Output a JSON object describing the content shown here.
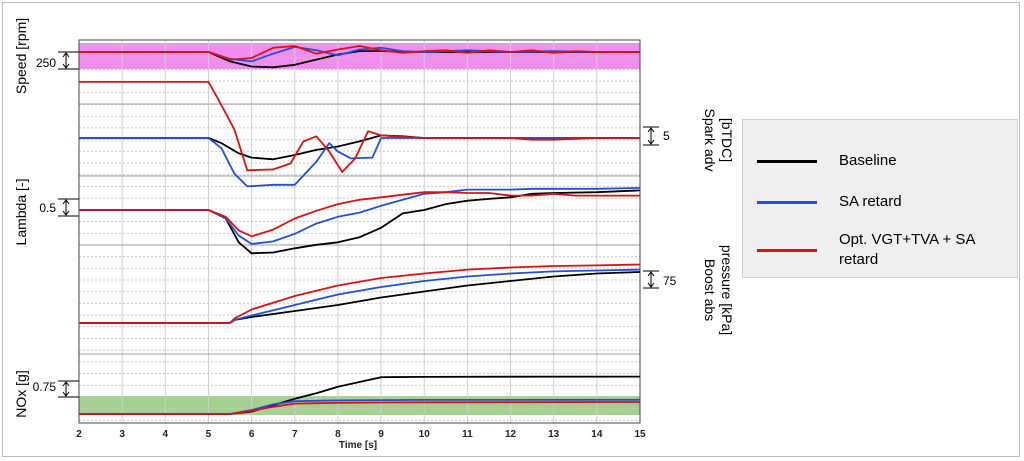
{
  "colors": {
    "baseline": "#000000",
    "sa_retard": "#1f4fe0",
    "opt": "#e01010",
    "speed_band": "#ee82ee",
    "nox_band": "#9fcf8a"
  },
  "legend": {
    "items": [
      {
        "label": "Baseline",
        "color": "#000000"
      },
      {
        "label": "SA retard",
        "color": "#1f4fe0"
      },
      {
        "label": "Opt. VGT+TVA + SA retard",
        "color": "#e01010"
      }
    ]
  },
  "chart_data": {
    "type": "line",
    "xlabel": "Time [s]",
    "xlim": [
      2,
      15
    ],
    "x_ticks": [
      "2",
      "3",
      "4",
      "5",
      "6",
      "7",
      "8",
      "9",
      "10",
      "11",
      "12",
      "13",
      "14",
      "15"
    ],
    "panels": [
      {
        "name": "speed",
        "label": "Speed [rpm]",
        "label_side": "left",
        "scale_label": "250",
        "series": [
          {
            "name": "Baseline",
            "x": [
              2,
              5,
              5.5,
              6,
              6.5,
              7,
              7.5,
              8,
              8.5,
              9,
              10,
              11,
              12,
              13,
              14,
              15
            ],
            "y": [
              0,
              0,
              -0.55,
              -0.85,
              -0.9,
              -0.75,
              -0.45,
              -0.15,
              0.05,
              0.05,
              0,
              0,
              0,
              0,
              0,
              0
            ]
          },
          {
            "name": "SA retard",
            "x": [
              2,
              5,
              5.5,
              6,
              6.5,
              7,
              7.5,
              8,
              8.5,
              9,
              9.5,
              10,
              11,
              12,
              13,
              14,
              15
            ],
            "y": [
              0,
              0,
              -0.4,
              -0.55,
              -0.1,
              0.3,
              0.1,
              -0.2,
              0.15,
              0.25,
              0.05,
              0,
              0.1,
              0,
              0.05,
              0,
              0
            ]
          },
          {
            "name": "Opt. VGT+TVA + SA retard",
            "x": [
              2,
              5,
              5.5,
              6,
              6.5,
              7,
              7.5,
              8,
              8.5,
              9,
              9.5,
              10,
              10.5,
              11,
              11.5,
              12,
              12.5,
              13,
              13.5,
              14,
              15
            ],
            "y": [
              0,
              0,
              -0.45,
              -0.35,
              0.25,
              0.35,
              -0.1,
              0.15,
              0.35,
              0.1,
              -0.05,
              0.05,
              0.1,
              -0.05,
              0.1,
              0,
              0.1,
              -0.05,
              0.05,
              0,
              0
            ]
          }
        ]
      },
      {
        "name": "spark",
        "label": "Spark adv [bTDC]",
        "label_side": "right",
        "scale_label": "5",
        "series": [
          {
            "name": "Baseline",
            "x": [
              2,
              5,
              5.3,
              5.7,
              6,
              6.5,
              7,
              7.5,
              8,
              8.5,
              9,
              9.5,
              10,
              12,
              15
            ],
            "y": [
              0,
              0,
              -0.3,
              -0.9,
              -1.15,
              -1.25,
              -1.0,
              -0.7,
              -0.5,
              -0.2,
              0.15,
              0.1,
              0,
              0,
              0
            ]
          },
          {
            "name": "SA retard",
            "x": [
              2,
              5,
              5.3,
              5.6,
              5.9,
              6.5,
              7,
              7.5,
              7.8,
              8,
              8.3,
              8.8,
              9,
              10,
              12,
              15
            ],
            "y": [
              0,
              0,
              -0.6,
              -2.1,
              -2.85,
              -2.75,
              -2.75,
              -1.4,
              -0.3,
              -0.8,
              -1.2,
              -1.15,
              0,
              0,
              0,
              0
            ]
          },
          {
            "name": "Opt. VGT+TVA + SA retard",
            "x": [
              2,
              5,
              5.2,
              5.6,
              5.9,
              6.5,
              6.9,
              7.2,
              7.5,
              7.8,
              8.1,
              8.4,
              8.7,
              9,
              9.3,
              10,
              11,
              12,
              12.5,
              13,
              14,
              15
            ],
            "y": [
              3.3,
              3.3,
              2.4,
              0.5,
              -1.9,
              -1.85,
              -1.5,
              -0.2,
              0.1,
              -0.8,
              -2.0,
              -1.2,
              0.4,
              0.15,
              0.1,
              0,
              0,
              0,
              -0.1,
              -0.1,
              0,
              0
            ]
          }
        ]
      },
      {
        "name": "lambda",
        "label": "Lambda [-]",
        "label_side": "left",
        "scale_label": "0.5",
        "series": [
          {
            "name": "Baseline",
            "x": [
              2,
              5,
              5.4,
              5.7,
              6,
              6.5,
              7,
              7.5,
              8,
              8.5,
              9,
              9.5,
              10,
              10.5,
              11,
              11.5,
              12,
              12.5,
              13,
              14,
              15
            ],
            "y": [
              0,
              0,
              -0.5,
              -1.9,
              -2.55,
              -2.5,
              -2.25,
              -2.05,
              -1.9,
              -1.6,
              -1.05,
              -0.2,
              0,
              0.35,
              0.55,
              0.65,
              0.75,
              0.95,
              1.0,
              1.05,
              1.15
            ]
          },
          {
            "name": "SA retard",
            "x": [
              2,
              5,
              5.4,
              5.7,
              6,
              6.5,
              7,
              7.5,
              8,
              8.5,
              9,
              9.5,
              10,
              10.5,
              11,
              11.5,
              12,
              12.5,
              13,
              14,
              15
            ],
            "y": [
              0,
              0,
              -0.5,
              -1.5,
              -2.0,
              -1.85,
              -1.4,
              -0.8,
              -0.4,
              -0.15,
              0.25,
              0.6,
              0.95,
              1.05,
              1.2,
              1.2,
              1.2,
              1.25,
              1.25,
              1.25,
              1.3
            ]
          },
          {
            "name": "Opt. VGT+TVA + SA retard",
            "x": [
              2,
              5,
              5.4,
              5.7,
              6,
              6.5,
              7,
              7.5,
              8,
              8.5,
              9,
              9.5,
              10,
              10.5,
              11,
              11.5,
              12,
              12.5,
              13,
              13.5,
              14,
              15
            ],
            "y": [
              0,
              0,
              -0.4,
              -1.2,
              -1.55,
              -1.15,
              -0.5,
              -0.05,
              0.35,
              0.6,
              0.75,
              0.9,
              1.05,
              1.05,
              1.0,
              1.0,
              0.85,
              0.85,
              0.95,
              0.85,
              0.85,
              0.85
            ]
          }
        ]
      },
      {
        "name": "boost",
        "label": "Boost abs pressure [kPa]",
        "label_side": "right",
        "scale_label": "75",
        "series": [
          {
            "name": "Baseline",
            "x": [
              2,
              5.5,
              5.6,
              6,
              7,
              8,
              9,
              10,
              11,
              12,
              13,
              14,
              15
            ],
            "y": [
              0,
              0,
              0.1,
              0.2,
              0.4,
              0.6,
              0.85,
              1.05,
              1.25,
              1.4,
              1.55,
              1.65,
              1.7
            ]
          },
          {
            "name": "SA retard",
            "x": [
              2,
              5.5,
              5.6,
              6,
              7,
              8,
              9,
              10,
              11,
              12,
              13,
              14,
              15
            ],
            "y": [
              0,
              0,
              0.1,
              0.25,
              0.6,
              0.95,
              1.2,
              1.4,
              1.55,
              1.65,
              1.72,
              1.75,
              1.78
            ]
          },
          {
            "name": "Opt. VGT+TVA + SA retard",
            "x": [
              2,
              5.5,
              5.6,
              6,
              7,
              8,
              9,
              10,
              11,
              12,
              13,
              14,
              15
            ],
            "y": [
              0,
              0,
              0.15,
              0.45,
              0.9,
              1.25,
              1.5,
              1.65,
              1.78,
              1.85,
              1.9,
              1.92,
              1.95
            ]
          }
        ]
      },
      {
        "name": "nox",
        "label": "NOx [g]",
        "label_side": "left",
        "scale_label": "0.75",
        "series": [
          {
            "name": "Baseline",
            "x": [
              2,
              5.5,
              6,
              6.5,
              7,
              7.5,
              8,
              8.5,
              9,
              10,
              12,
              15
            ],
            "y": [
              0,
              0,
              0.15,
              0.55,
              0.95,
              1.3,
              1.7,
              2.0,
              2.3,
              2.32,
              2.33,
              2.34
            ]
          },
          {
            "name": "SA retard",
            "x": [
              2,
              5.5,
              6,
              6.5,
              7,
              8,
              9,
              10,
              12,
              15
            ],
            "y": [
              0,
              0,
              0.25,
              0.6,
              0.8,
              0.85,
              0.87,
              0.88,
              0.88,
              0.89
            ]
          },
          {
            "name": "Opt. VGT+TVA + SA retard",
            "x": [
              2,
              5.5,
              6,
              6.5,
              7,
              8,
              9,
              10,
              12,
              15
            ],
            "y": [
              0,
              0,
              0.2,
              0.45,
              0.65,
              0.7,
              0.72,
              0.73,
              0.74,
              0.75
            ]
          }
        ]
      }
    ]
  }
}
